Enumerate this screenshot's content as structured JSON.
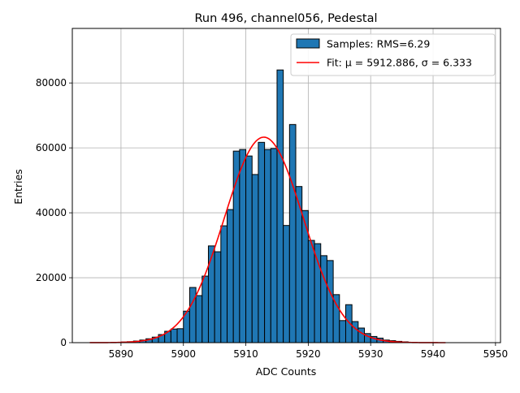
{
  "chart_data": {
    "type": "bar",
    "title": "Run 496, channel056, Pedestal",
    "xlabel": "ADC Counts",
    "ylabel": "Entries",
    "xlim": [
      5882.2,
      5950.8
    ],
    "ylim": [
      0,
      96800
    ],
    "xticks": [
      5890,
      5900,
      5910,
      5920,
      5930,
      5940,
      5950
    ],
    "yticks": [
      0,
      20000,
      40000,
      60000,
      80000
    ],
    "grid": true,
    "legend_position": "upper right",
    "bin_width": 1,
    "series": [
      {
        "name": "Samples: RMS=6.29",
        "kind": "histogram",
        "color": "#1f77b4",
        "edgecolor": "#000000",
        "bins": [
          5889,
          5890,
          5891,
          5892,
          5893,
          5894,
          5895,
          5896,
          5897,
          5898,
          5899,
          5900,
          5901,
          5902,
          5903,
          5904,
          5905,
          5906,
          5907,
          5908,
          5909,
          5910,
          5911,
          5912,
          5913,
          5914,
          5915,
          5916,
          5917,
          5918,
          5919,
          5920,
          5921,
          5922,
          5923,
          5924,
          5925,
          5926,
          5927,
          5928,
          5929,
          5930,
          5931,
          5932,
          5933,
          5934,
          5935,
          5936
        ],
        "values": [
          100,
          200,
          300,
          500,
          800,
          1200,
          1700,
          2500,
          3500,
          4200,
          4300,
          9700,
          17000,
          14500,
          20500,
          29800,
          28000,
          36000,
          41000,
          59000,
          59500,
          57500,
          51800,
          61700,
          59500,
          59800,
          84000,
          36100,
          67200,
          48100,
          40700,
          31500,
          30500,
          26800,
          25300,
          14800,
          6800,
          11700,
          6500,
          4500,
          2800,
          1900,
          1400,
          800,
          600,
          400,
          250,
          100
        ]
      },
      {
        "name": "Fit: μ = 5912.886, σ = 6.333",
        "kind": "gaussian",
        "color": "#ff0000",
        "mu": 5912.886,
        "sigma": 6.333,
        "amplitude": 63300,
        "x_range": [
          5885,
          5942
        ]
      }
    ]
  }
}
